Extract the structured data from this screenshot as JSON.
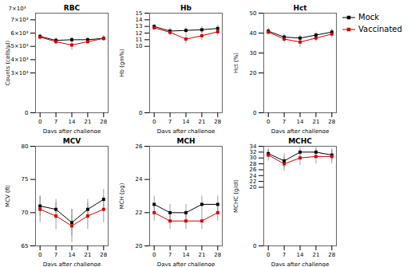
{
  "chart_data": [
    {
      "type": "line",
      "title": "RBC",
      "xlabel": "Days after challenge",
      "ylabel": "Counts (cells/μl)",
      "x": [
        0,
        7,
        14,
        21,
        28
      ],
      "series": [
        {
          "name": "Mock",
          "color": "#000000",
          "marker": "square",
          "values": [
            5750,
            5450,
            5500,
            5500,
            5600
          ],
          "errors": [
            150,
            200,
            200,
            200,
            200
          ]
        },
        {
          "name": "Vaccinated",
          "color": "#cc0000",
          "marker": "square",
          "values": [
            5700,
            5350,
            5100,
            5350,
            5600
          ],
          "errors": [
            200,
            250,
            380,
            200,
            200
          ]
        }
      ],
      "xlim": [
        -2,
        30
      ],
      "xticks": [
        0,
        7,
        14,
        21,
        28
      ],
      "ylim": [
        0,
        7500
      ],
      "yticks": [
        0,
        {
          "value": 3000,
          "label": "3×10³"
        },
        {
          "value": 4000,
          "label": "4×10³"
        },
        {
          "value": 5000,
          "label": "5×10³"
        },
        {
          "value": 6000,
          "label": "6×10³"
        },
        {
          "value": 7000,
          "label": "7×10³"
        }
      ],
      "annotations": [
        "7×10³"
      ],
      "legend": "upper right"
    },
    {
      "type": "line",
      "title": "Hb",
      "xlabel": "Days after challenge",
      "ylabel": "Hb (gm%)",
      "x": [
        0,
        7,
        14,
        21,
        28
      ],
      "series": [
        {
          "name": "Mock",
          "color": "#000000",
          "marker": "square",
          "values": [
            13.0,
            12.3,
            12.4,
            12.5,
            12.7
          ],
          "errors": [
            0.3,
            0.4,
            0.5,
            0.5,
            0.5
          ]
        },
        {
          "name": "Vaccinated",
          "color": "#cc0000",
          "marker": "square",
          "values": [
            12.8,
            12.1,
            11.1,
            11.6,
            12.2
          ],
          "errors": [
            0.4,
            0.5,
            0.7,
            0.7,
            0.7
          ]
        }
      ],
      "xlim": [
        -2,
        30
      ],
      "xticks": [
        0,
        7,
        14,
        21,
        28
      ],
      "ylim": [
        0,
        15
      ],
      "yticks": [
        0,
        10,
        11,
        12,
        13,
        14,
        15
      ]
    },
    {
      "type": "line",
      "title": "Hct",
      "xlabel": "Days after challenge",
      "ylabel": "Hct (%)",
      "x": [
        0,
        7,
        14,
        21,
        28
      ],
      "series": [
        {
          "name": "Mock",
          "color": "#000000",
          "marker": "square",
          "values": [
            41.0,
            38.0,
            37.5,
            39.0,
            40.5
          ],
          "errors": [
            1.5,
            1.5,
            1.5,
            1.5,
            1.5
          ]
        },
        {
          "name": "Vaccinated",
          "color": "#cc0000",
          "marker": "square",
          "values": [
            40.5,
            37.0,
            35.5,
            37.5,
            39.5
          ],
          "errors": [
            1.5,
            2.0,
            2.5,
            2.0,
            2.0
          ]
        }
      ],
      "xlim": [
        -2,
        30
      ],
      "xticks": [
        0,
        7,
        14,
        21,
        28
      ],
      "ylim": [
        0,
        50
      ],
      "yticks": [
        0,
        20,
        30,
        40,
        50
      ]
    },
    {
      "type": "line",
      "title": "MCV",
      "xlabel": "Days after challenge",
      "ylabel": "MCV (fl)",
      "x": [
        0,
        7,
        14,
        21,
        28
      ],
      "series": [
        {
          "name": "Mock",
          "color": "#000000",
          "marker": "square",
          "values": [
            71.0,
            70.5,
            68.5,
            70.5,
            72.0
          ],
          "errors": [
            1.5,
            1.5,
            2.0,
            1.5,
            1.5
          ]
        },
        {
          "name": "Vaccinated",
          "color": "#cc0000",
          "marker": "square",
          "values": [
            70.5,
            69.5,
            68.0,
            69.5,
            70.5
          ],
          "errors": [
            2.0,
            2.0,
            2.5,
            2.0,
            2.0
          ]
        }
      ],
      "xlim": [
        -2,
        30
      ],
      "xticks": [
        0,
        7,
        14,
        21,
        28
      ],
      "ylim": [
        65,
        80
      ],
      "yticks": [
        65,
        70,
        75,
        80
      ]
    },
    {
      "type": "line",
      "title": "MCH",
      "xlabel": "Days after challenge",
      "ylabel": "MCH (pg)",
      "x": [
        0,
        7,
        14,
        21,
        28
      ],
      "series": [
        {
          "name": "Mock",
          "color": "#000000",
          "marker": "square",
          "values": [
            22.5,
            22.0,
            22.0,
            22.5,
            22.5
          ],
          "errors": [
            0.5,
            0.5,
            0.5,
            0.5,
            0.5
          ]
        },
        {
          "name": "Vaccinated",
          "color": "#cc0000",
          "marker": "square",
          "values": [
            22.0,
            21.5,
            21.5,
            21.5,
            22.0
          ],
          "errors": [
            0.5,
            0.5,
            0.5,
            0.5,
            0.5
          ]
        }
      ],
      "xlim": [
        -2,
        30
      ],
      "xticks": [
        0,
        7,
        14,
        21,
        28
      ],
      "ylim": [
        20,
        26
      ],
      "yticks": [
        20,
        22,
        24,
        26
      ]
    },
    {
      "type": "line",
      "title": "MCHC",
      "xlabel": "Days after challenge",
      "ylabel": "MCHC (g/dl)",
      "x": [
        0,
        7,
        14,
        21,
        28
      ],
      "series": [
        {
          "name": "Mock",
          "color": "#000000",
          "marker": "square",
          "values": [
            31.5,
            29.0,
            32.0,
            32.0,
            31.0
          ],
          "errors": [
            1.5,
            2.5,
            2.0,
            2.0,
            2.0
          ]
        },
        {
          "name": "Vaccinated",
          "color": "#cc0000",
          "marker": "square",
          "values": [
            31.0,
            28.0,
            30.0,
            30.5,
            30.5
          ],
          "errors": [
            2.0,
            2.5,
            2.5,
            2.5,
            2.5
          ]
        }
      ],
      "xlim": [
        -2,
        30
      ],
      "xticks": [
        0,
        7,
        14,
        21,
        28
      ],
      "ylim": [
        0,
        34
      ],
      "yticks": [
        0,
        20,
        22,
        24,
        26,
        28,
        30,
        32,
        34
      ]
    }
  ]
}
